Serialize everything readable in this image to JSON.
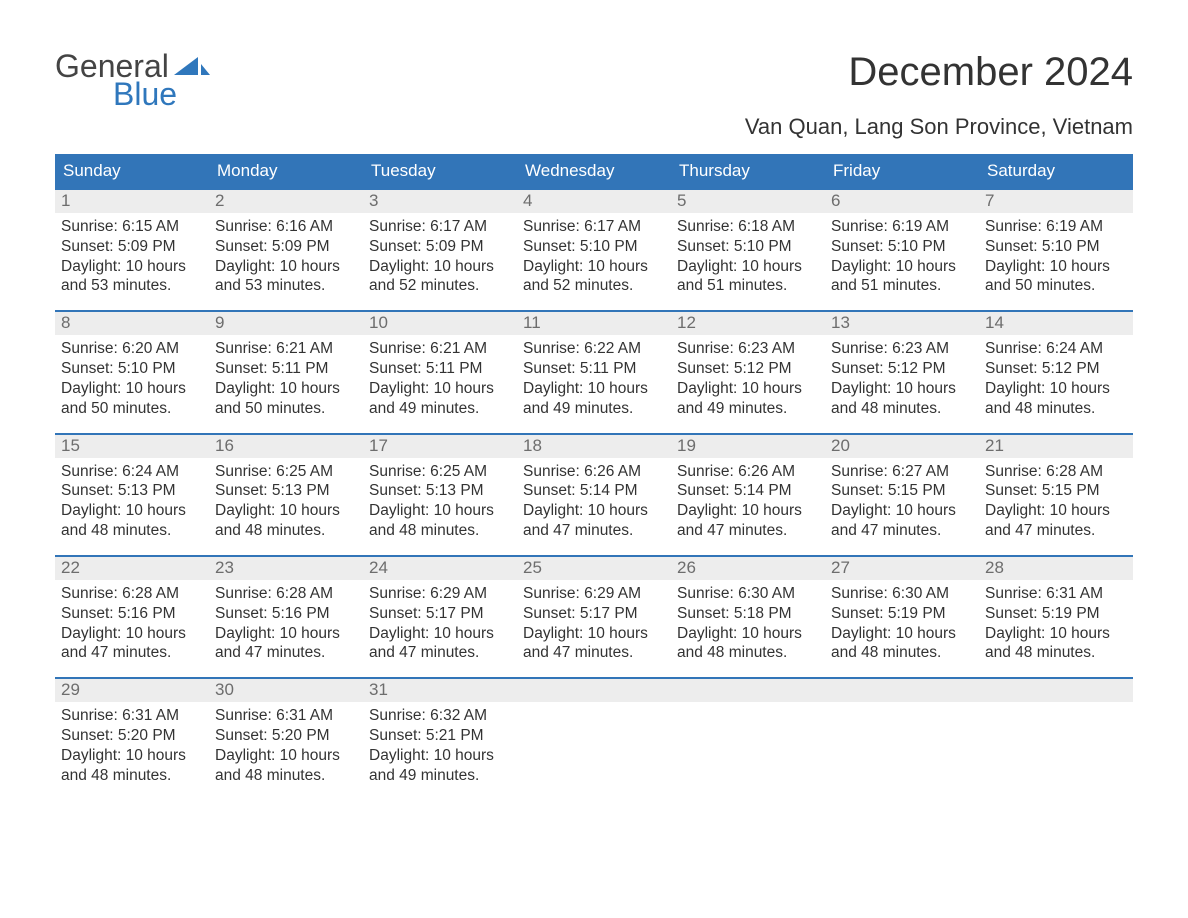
{
  "logo": {
    "text_general": "General",
    "text_blue": "Blue",
    "sail_color": "#2f77bc"
  },
  "title": "December 2024",
  "subtitle": "Van Quan, Lang Son Province, Vietnam",
  "colors": {
    "header_bg": "#3275b8",
    "daynum_bg": "#ededed",
    "daynum_color": "#6d6d6d",
    "text": "#333333",
    "background": "#ffffff"
  },
  "fontsizes": {
    "title": 40,
    "subtitle": 22,
    "dayheader": 17,
    "daynum": 17,
    "info": 15.5,
    "logo": 32
  },
  "day_names": [
    "Sunday",
    "Monday",
    "Tuesday",
    "Wednesday",
    "Thursday",
    "Friday",
    "Saturday"
  ],
  "weeks": [
    [
      {
        "day": "1",
        "sunrise": "Sunrise: 6:15 AM",
        "sunset": "Sunset: 5:09 PM",
        "daylight1": "Daylight: 10 hours",
        "daylight2": "and 53 minutes."
      },
      {
        "day": "2",
        "sunrise": "Sunrise: 6:16 AM",
        "sunset": "Sunset: 5:09 PM",
        "daylight1": "Daylight: 10 hours",
        "daylight2": "and 53 minutes."
      },
      {
        "day": "3",
        "sunrise": "Sunrise: 6:17 AM",
        "sunset": "Sunset: 5:09 PM",
        "daylight1": "Daylight: 10 hours",
        "daylight2": "and 52 minutes."
      },
      {
        "day": "4",
        "sunrise": "Sunrise: 6:17 AM",
        "sunset": "Sunset: 5:10 PM",
        "daylight1": "Daylight: 10 hours",
        "daylight2": "and 52 minutes."
      },
      {
        "day": "5",
        "sunrise": "Sunrise: 6:18 AM",
        "sunset": "Sunset: 5:10 PM",
        "daylight1": "Daylight: 10 hours",
        "daylight2": "and 51 minutes."
      },
      {
        "day": "6",
        "sunrise": "Sunrise: 6:19 AM",
        "sunset": "Sunset: 5:10 PM",
        "daylight1": "Daylight: 10 hours",
        "daylight2": "and 51 minutes."
      },
      {
        "day": "7",
        "sunrise": "Sunrise: 6:19 AM",
        "sunset": "Sunset: 5:10 PM",
        "daylight1": "Daylight: 10 hours",
        "daylight2": "and 50 minutes."
      }
    ],
    [
      {
        "day": "8",
        "sunrise": "Sunrise: 6:20 AM",
        "sunset": "Sunset: 5:10 PM",
        "daylight1": "Daylight: 10 hours",
        "daylight2": "and 50 minutes."
      },
      {
        "day": "9",
        "sunrise": "Sunrise: 6:21 AM",
        "sunset": "Sunset: 5:11 PM",
        "daylight1": "Daylight: 10 hours",
        "daylight2": "and 50 minutes."
      },
      {
        "day": "10",
        "sunrise": "Sunrise: 6:21 AM",
        "sunset": "Sunset: 5:11 PM",
        "daylight1": "Daylight: 10 hours",
        "daylight2": "and 49 minutes."
      },
      {
        "day": "11",
        "sunrise": "Sunrise: 6:22 AM",
        "sunset": "Sunset: 5:11 PM",
        "daylight1": "Daylight: 10 hours",
        "daylight2": "and 49 minutes."
      },
      {
        "day": "12",
        "sunrise": "Sunrise: 6:23 AM",
        "sunset": "Sunset: 5:12 PM",
        "daylight1": "Daylight: 10 hours",
        "daylight2": "and 49 minutes."
      },
      {
        "day": "13",
        "sunrise": "Sunrise: 6:23 AM",
        "sunset": "Sunset: 5:12 PM",
        "daylight1": "Daylight: 10 hours",
        "daylight2": "and 48 minutes."
      },
      {
        "day": "14",
        "sunrise": "Sunrise: 6:24 AM",
        "sunset": "Sunset: 5:12 PM",
        "daylight1": "Daylight: 10 hours",
        "daylight2": "and 48 minutes."
      }
    ],
    [
      {
        "day": "15",
        "sunrise": "Sunrise: 6:24 AM",
        "sunset": "Sunset: 5:13 PM",
        "daylight1": "Daylight: 10 hours",
        "daylight2": "and 48 minutes."
      },
      {
        "day": "16",
        "sunrise": "Sunrise: 6:25 AM",
        "sunset": "Sunset: 5:13 PM",
        "daylight1": "Daylight: 10 hours",
        "daylight2": "and 48 minutes."
      },
      {
        "day": "17",
        "sunrise": "Sunrise: 6:25 AM",
        "sunset": "Sunset: 5:13 PM",
        "daylight1": "Daylight: 10 hours",
        "daylight2": "and 48 minutes."
      },
      {
        "day": "18",
        "sunrise": "Sunrise: 6:26 AM",
        "sunset": "Sunset: 5:14 PM",
        "daylight1": "Daylight: 10 hours",
        "daylight2": "and 47 minutes."
      },
      {
        "day": "19",
        "sunrise": "Sunrise: 6:26 AM",
        "sunset": "Sunset: 5:14 PM",
        "daylight1": "Daylight: 10 hours",
        "daylight2": "and 47 minutes."
      },
      {
        "day": "20",
        "sunrise": "Sunrise: 6:27 AM",
        "sunset": "Sunset: 5:15 PM",
        "daylight1": "Daylight: 10 hours",
        "daylight2": "and 47 minutes."
      },
      {
        "day": "21",
        "sunrise": "Sunrise: 6:28 AM",
        "sunset": "Sunset: 5:15 PM",
        "daylight1": "Daylight: 10 hours",
        "daylight2": "and 47 minutes."
      }
    ],
    [
      {
        "day": "22",
        "sunrise": "Sunrise: 6:28 AM",
        "sunset": "Sunset: 5:16 PM",
        "daylight1": "Daylight: 10 hours",
        "daylight2": "and 47 minutes."
      },
      {
        "day": "23",
        "sunrise": "Sunrise: 6:28 AM",
        "sunset": "Sunset: 5:16 PM",
        "daylight1": "Daylight: 10 hours",
        "daylight2": "and 47 minutes."
      },
      {
        "day": "24",
        "sunrise": "Sunrise: 6:29 AM",
        "sunset": "Sunset: 5:17 PM",
        "daylight1": "Daylight: 10 hours",
        "daylight2": "and 47 minutes."
      },
      {
        "day": "25",
        "sunrise": "Sunrise: 6:29 AM",
        "sunset": "Sunset: 5:17 PM",
        "daylight1": "Daylight: 10 hours",
        "daylight2": "and 47 minutes."
      },
      {
        "day": "26",
        "sunrise": "Sunrise: 6:30 AM",
        "sunset": "Sunset: 5:18 PM",
        "daylight1": "Daylight: 10 hours",
        "daylight2": "and 48 minutes."
      },
      {
        "day": "27",
        "sunrise": "Sunrise: 6:30 AM",
        "sunset": "Sunset: 5:19 PM",
        "daylight1": "Daylight: 10 hours",
        "daylight2": "and 48 minutes."
      },
      {
        "day": "28",
        "sunrise": "Sunrise: 6:31 AM",
        "sunset": "Sunset: 5:19 PM",
        "daylight1": "Daylight: 10 hours",
        "daylight2": "and 48 minutes."
      }
    ],
    [
      {
        "day": "29",
        "sunrise": "Sunrise: 6:31 AM",
        "sunset": "Sunset: 5:20 PM",
        "daylight1": "Daylight: 10 hours",
        "daylight2": "and 48 minutes."
      },
      {
        "day": "30",
        "sunrise": "Sunrise: 6:31 AM",
        "sunset": "Sunset: 5:20 PM",
        "daylight1": "Daylight: 10 hours",
        "daylight2": "and 48 minutes."
      },
      {
        "day": "31",
        "sunrise": "Sunrise: 6:32 AM",
        "sunset": "Sunset: 5:21 PM",
        "daylight1": "Daylight: 10 hours",
        "daylight2": "and 49 minutes."
      },
      null,
      null,
      null,
      null
    ]
  ]
}
